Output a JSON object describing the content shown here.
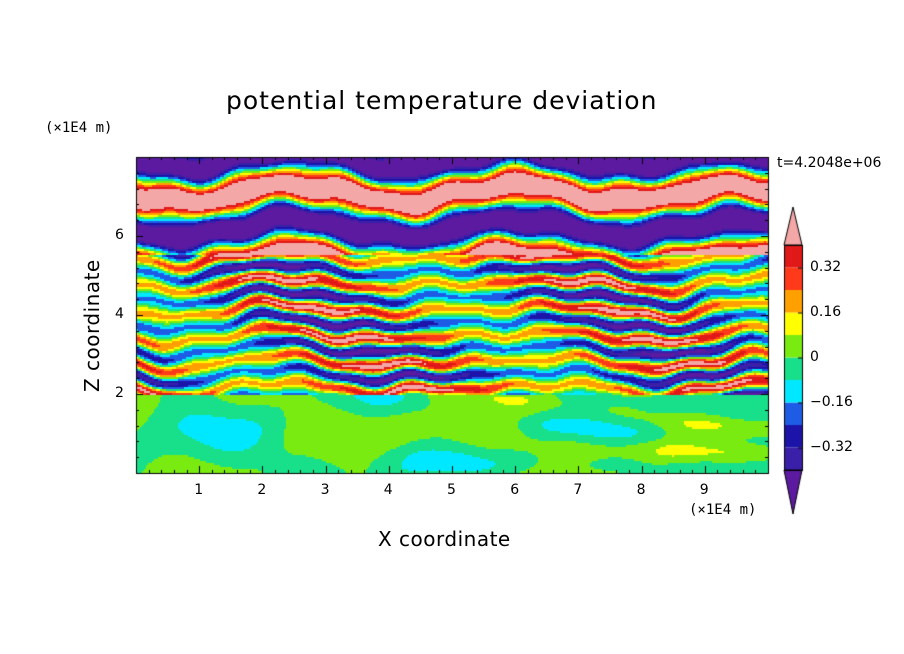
{
  "chart_data": {
    "type": "heatmap",
    "title": "potential temperature deviation",
    "xlabel": "X coordinate",
    "ylabel": "Z coordinate",
    "x_unit": "(×1E4 m)",
    "y_unit": "(×1E4 m)",
    "time_label": "t=4.2048e+06",
    "xlim": [
      0,
      10
    ],
    "ylim": [
      0,
      8
    ],
    "x_ticks": [
      "1",
      "2",
      "3",
      "4",
      "5",
      "6",
      "7",
      "8",
      "9"
    ],
    "y_ticks": [
      "2",
      "4",
      "6"
    ],
    "colorbar": {
      "tick_labels": [
        "0.32",
        "0.16",
        "0",
        "−0.16",
        "−0.32"
      ],
      "tick_values": [
        0.32,
        0.16,
        0,
        -0.16,
        -0.32
      ],
      "levels": [
        -0.4,
        -0.32,
        -0.24,
        -0.16,
        -0.08,
        0,
        0.08,
        0.16,
        0.24,
        0.32,
        0.4
      ],
      "colors": [
        "#5b1aa0",
        "#3a1fa8",
        "#1c14a8",
        "#1e5ce6",
        "#00e8ff",
        "#18e08a",
        "#7aeb10",
        "#ffff00",
        "#ffa000",
        "#ff3a1a",
        "#e01818",
        "#f4a7a7"
      ],
      "extend": "both"
    },
    "description_regions": [
      {
        "z_range": [
          0,
          2
        ],
        "pattern": "mostly near-zero values with small turbulent eddies"
      },
      {
        "z_range": [
          2,
          5.5
        ],
        "pattern": "thin alternating positive/negative layers"
      },
      {
        "z_range": [
          5.5,
          8
        ],
        "pattern": "broad alternating layers of about ±0.4"
      }
    ]
  }
}
